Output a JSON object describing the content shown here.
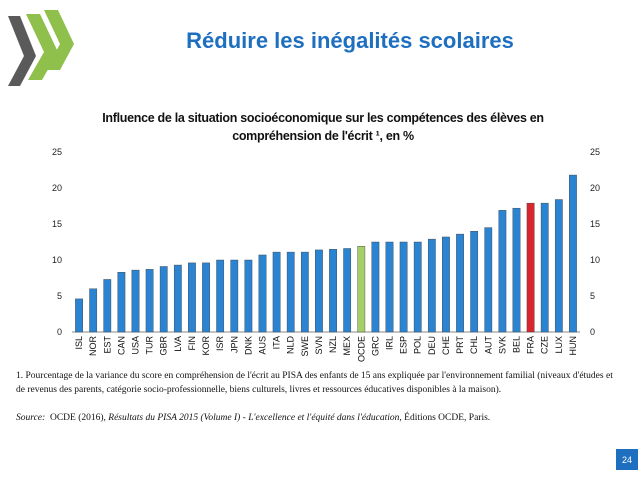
{
  "slide": {
    "title": "Réduire les inégalités scolaires",
    "page_number": "24"
  },
  "footnote": {
    "text": "1. Pourcentage de la variance du score en compréhension de l'écrit au PISA des enfants de 15 ans expliquée par l'environnement familial (niveaux d'études et de revenus des parents, catégorie socio-professionnelle, biens culturels, livres et ressources éducatives disponibles à la maison)."
  },
  "source": {
    "label": "Source:",
    "text_before": "OCDE (2016), ",
    "italic": "Résultats du PISA 2015 (Volume I) - L'excellence et l'équité dans l'éducation",
    "text_after": ", Éditions OCDE, Paris."
  },
  "colors": {
    "brand": "#1f6fc0",
    "bar": "#2a84d2",
    "oecd_bar": "#a6cf6a",
    "france_bar": "#d8262e",
    "logo_green": "#8fc04c",
    "logo_grey": "#555555"
  },
  "chart_data": {
    "type": "bar",
    "title": "Influence de la situation socioéconomique sur les compétences des élèves en compréhension de l'écrit ¹, en %",
    "xlabel": "",
    "ylabel": "",
    "ylim": [
      0,
      25
    ],
    "yticks": [
      0,
      5,
      10,
      15,
      20,
      25
    ],
    "grid": false,
    "y_axis_both_sides": true,
    "categories": [
      "ISL",
      "NOR",
      "EST",
      "CAN",
      "USA",
      "TUR",
      "GBR",
      "LVA",
      "FIN",
      "KOR",
      "ISR",
      "JPN",
      "DNK",
      "AUS",
      "ITA",
      "NLD",
      "SWE",
      "SVN",
      "NZL",
      "MEX",
      "OCDE",
      "GRC",
      "IRL",
      "ESP",
      "POL",
      "DEU",
      "CHE",
      "PRT",
      "CHL",
      "AUT",
      "SVK",
      "BEL",
      "FRA",
      "CZE",
      "LUX",
      "HUN"
    ],
    "values": [
      4.6,
      6.0,
      7.3,
      8.3,
      8.6,
      8.7,
      9.1,
      9.3,
      9.6,
      9.6,
      10.0,
      10.0,
      10.0,
      10.7,
      11.1,
      11.1,
      11.1,
      11.4,
      11.5,
      11.6,
      11.9,
      12.5,
      12.5,
      12.5,
      12.5,
      12.9,
      13.2,
      13.6,
      14.0,
      14.5,
      16.9,
      17.2,
      17.9,
      17.9,
      18.4,
      21.8
    ],
    "highlights": {
      "OCDE": "oecd_bar",
      "FRA": "france_bar"
    }
  }
}
